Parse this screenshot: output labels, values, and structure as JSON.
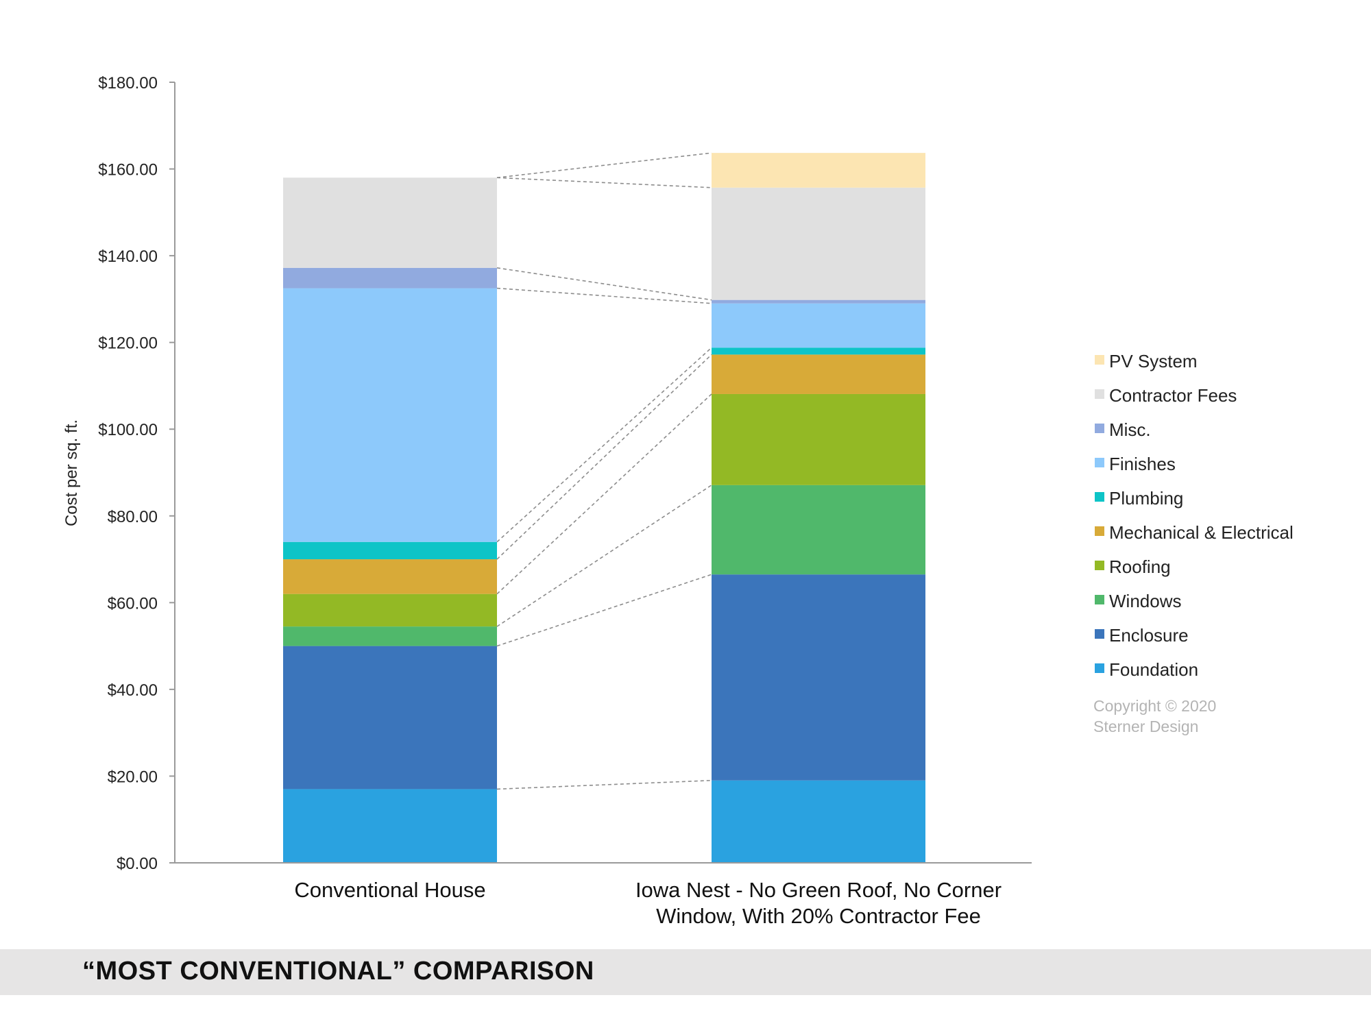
{
  "chart_data": {
    "type": "bar",
    "stacked": true,
    "ylabel": "Cost per sq. ft.",
    "ylim": [
      0,
      180
    ],
    "yticks": [
      "$0.00",
      "$20.00",
      "$40.00",
      "$60.00",
      "$80.00",
      "$100.00",
      "$120.00",
      "$140.00",
      "$160.00",
      "$180.00"
    ],
    "categories": [
      [
        "Conventional House"
      ],
      [
        "Iowa Nest - No Green Roof, No Corner",
        "Window, With 20% Contractor Fee"
      ]
    ],
    "series": [
      {
        "name": "Foundation",
        "color": "#2aa2e0",
        "values": [
          17.0,
          19.0
        ]
      },
      {
        "name": "Enclosure",
        "color": "#3b75bb",
        "values": [
          33.0,
          47.5
        ]
      },
      {
        "name": "Windows",
        "color": "#50b86b",
        "values": [
          4.5,
          20.6
        ]
      },
      {
        "name": "Roofing",
        "color": "#93b925",
        "values": [
          7.5,
          21.0
        ]
      },
      {
        "name": "Mechanical & Electrical",
        "color": "#d8aa38",
        "values": [
          8.0,
          9.1
        ]
      },
      {
        "name": "Plumbing",
        "color": "#0dc4c7",
        "values": [
          4.0,
          1.6
        ]
      },
      {
        "name": "Finishes",
        "color": "#8dc9fb",
        "values": [
          58.5,
          10.2
        ]
      },
      {
        "name": "Misc.",
        "color": "#91aadf",
        "values": [
          4.7,
          0.8
        ]
      },
      {
        "name": "Contractor Fees",
        "color": "#e0e0e0",
        "values": [
          20.8,
          25.9
        ]
      },
      {
        "name": "PV System",
        "color": "#fce5b2",
        "values": [
          0,
          8.0
        ]
      }
    ],
    "legend_position": "right",
    "connector_lines": "dashed",
    "grid": false
  },
  "copyright": [
    "Copyright © 2020",
    "Sterner Design"
  ],
  "footer_title": "“MOST CONVENTIONAL” COMPARISON"
}
